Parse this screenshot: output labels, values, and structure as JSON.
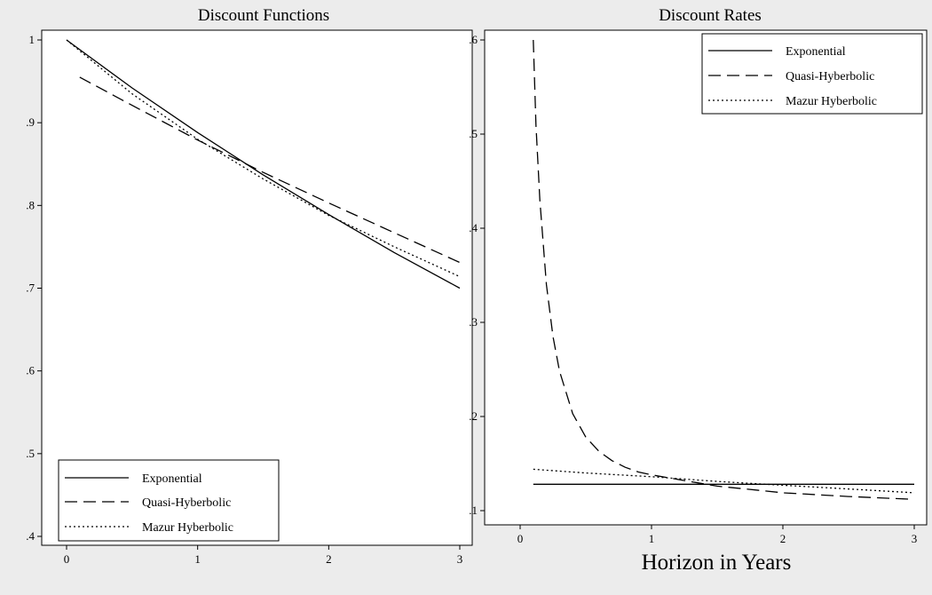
{
  "chart_data": [
    {
      "type": "line",
      "title": "Discount Functions",
      "xlabel": "",
      "ylabel": "",
      "xlim": [
        0,
        3
      ],
      "ylim": [
        0.4,
        1.0
      ],
      "xticks": [
        "0",
        "1",
        "2",
        "3"
      ],
      "yticks": [
        ".4",
        ".5",
        ".6",
        ".7",
        ".8",
        ".9",
        "1"
      ],
      "grid": false,
      "legend_position": "bottom-left",
      "series": [
        {
          "name": "Exponential",
          "style": "solid",
          "x": [
            0,
            0.5,
            1,
            1.5,
            2,
            2.5,
            3
          ],
          "y": [
            1.0,
            0.942,
            0.888,
            0.837,
            0.789,
            0.743,
            0.7
          ]
        },
        {
          "name": "Quasi-Hyberbolic",
          "style": "dashed",
          "x": [
            0.1,
            0.5,
            1,
            1.5,
            2,
            2.5,
            3
          ],
          "y": [
            0.955,
            0.921,
            0.879,
            0.84,
            0.803,
            0.767,
            0.731
          ]
        },
        {
          "name": "Mazur Hyberbolic",
          "style": "dotted",
          "x": [
            0,
            0.5,
            1,
            1.5,
            2,
            2.5,
            3
          ],
          "y": [
            1.0,
            0.935,
            0.88,
            0.832,
            0.788,
            0.75,
            0.714
          ]
        }
      ]
    },
    {
      "type": "line",
      "title": "Discount Rates",
      "xlabel": "Horizon in Years",
      "ylabel": "",
      "xlim": [
        0,
        3
      ],
      "ylim": [
        0.1,
        0.6
      ],
      "xticks": [
        "0",
        "1",
        "2",
        "3"
      ],
      "yticks": [
        ".1",
        ".2",
        ".3",
        ".4",
        ".5",
        ".6"
      ],
      "grid": false,
      "legend_position": "top-right",
      "series": [
        {
          "name": "Exponential",
          "style": "solid",
          "x": [
            0.1,
            1,
            2,
            3
          ],
          "y": [
            0.128,
            0.128,
            0.128,
            0.128
          ]
        },
        {
          "name": "Quasi-Hyberbolic",
          "style": "dashed",
          "x": [
            0.1,
            0.12,
            0.15,
            0.2,
            0.25,
            0.3,
            0.4,
            0.5,
            0.6,
            0.7,
            0.8,
            0.9,
            1.0,
            1.25,
            1.5,
            2.0,
            2.5,
            3.0
          ],
          "y": [
            0.6,
            0.51,
            0.43,
            0.34,
            0.285,
            0.248,
            0.203,
            0.178,
            0.163,
            0.153,
            0.146,
            0.141,
            0.138,
            0.132,
            0.126,
            0.119,
            0.115,
            0.112
          ]
        },
        {
          "name": "Mazur Hyberbolic",
          "style": "dotted",
          "x": [
            0.1,
            0.5,
            1.0,
            1.5,
            2.0,
            2.5,
            3.0
          ],
          "y": [
            0.144,
            0.14,
            0.136,
            0.131,
            0.127,
            0.123,
            0.119
          ]
        }
      ]
    }
  ]
}
